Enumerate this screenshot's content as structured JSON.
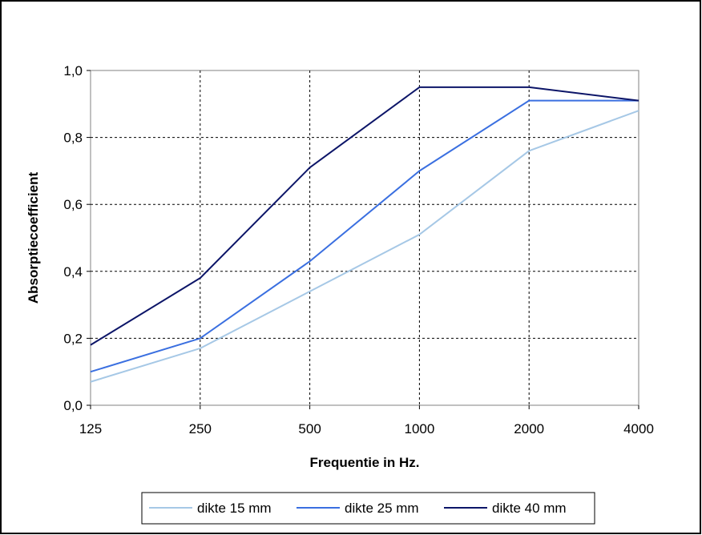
{
  "chart_data": {
    "type": "line",
    "title": "",
    "xlabel": "Frequentie in Hz.",
    "ylabel": "Absorptiecoefficient",
    "categories": [
      "125",
      "250",
      "500",
      "1000",
      "2000",
      "4000"
    ],
    "y_tick_labels": [
      "0,0",
      "0,2",
      "0,4",
      "0,6",
      "0,8",
      "1,0"
    ],
    "y_ticks": [
      0,
      0.2,
      0.4,
      0.6,
      0.8,
      1.0
    ],
    "ylim": [
      0,
      1.0
    ],
    "grid": true,
    "legend_position": "bottom",
    "series": [
      {
        "name": "dikte 15 mm",
        "color": "#a6c8e6",
        "values": [
          0.07,
          0.17,
          0.34,
          0.51,
          0.76,
          0.88
        ]
      },
      {
        "name": "dikte 25 mm",
        "color": "#3a6fe0",
        "values": [
          0.1,
          0.2,
          0.43,
          0.7,
          0.91,
          0.91
        ]
      },
      {
        "name": "dikte 40 mm",
        "color": "#0c1568",
        "values": [
          0.18,
          0.38,
          0.71,
          0.95,
          0.95,
          0.91
        ]
      }
    ]
  }
}
